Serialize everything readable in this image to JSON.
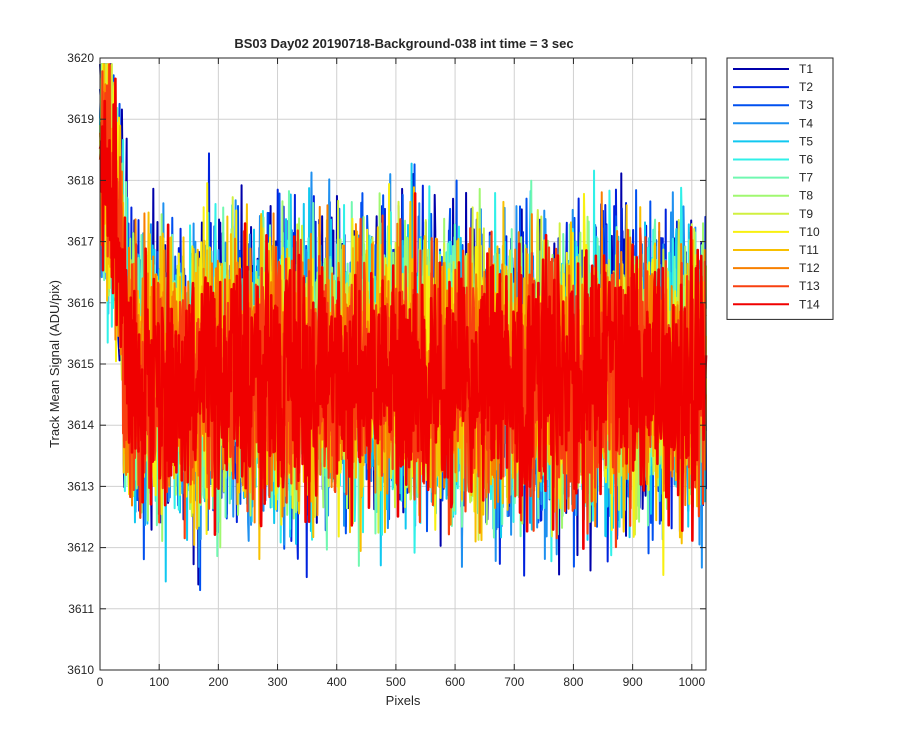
{
  "chart_data": {
    "type": "line",
    "title": "BS03 Day02 20190718-Background-038 int time = 3 sec",
    "xlabel": "Pixels",
    "ylabel": "Track Mean Signal (ADU/pix)",
    "xlim": [
      0,
      1024
    ],
    "ylim": [
      3610,
      3620
    ],
    "xticks": [
      0,
      100,
      200,
      300,
      400,
      500,
      600,
      700,
      800,
      900,
      1000
    ],
    "yticks": [
      3610,
      3611,
      3612,
      3613,
      3614,
      3615,
      3616,
      3617,
      3618,
      3619,
      3620
    ],
    "grid": true,
    "legend_position": "outside-top-right",
    "n_points_per_series": 1024,
    "series": [
      {
        "name": "T1",
        "color": "#0000AA",
        "start": 3619.8,
        "mean": 3615.0,
        "noise": 1.25,
        "stroke": 2.0
      },
      {
        "name": "T2",
        "color": "#0022DD",
        "start": 3619.5,
        "mean": 3614.95,
        "noise": 1.22,
        "stroke": 2.0
      },
      {
        "name": "T3",
        "color": "#0050F0",
        "start": 3619.3,
        "mean": 3614.9,
        "noise": 1.2,
        "stroke": 2.0
      },
      {
        "name": "T4",
        "color": "#1E90F0",
        "start": 3619.1,
        "mean": 3614.85,
        "noise": 1.18,
        "stroke": 2.0
      },
      {
        "name": "T5",
        "color": "#10C8F0",
        "start": 3619.0,
        "mean": 3614.85,
        "noise": 1.15,
        "stroke": 2.0
      },
      {
        "name": "T6",
        "color": "#30F0E8",
        "start": 3618.9,
        "mean": 3614.85,
        "noise": 1.12,
        "stroke": 2.0
      },
      {
        "name": "T7",
        "color": "#70F8B0",
        "start": 3618.8,
        "mean": 3614.85,
        "noise": 1.1,
        "stroke": 2.0
      },
      {
        "name": "T8",
        "color": "#A0F870",
        "start": 3618.7,
        "mean": 3614.85,
        "noise": 1.08,
        "stroke": 2.0
      },
      {
        "name": "T9",
        "color": "#D0F040",
        "start": 3618.6,
        "mean": 3614.85,
        "noise": 1.06,
        "stroke": 2.0
      },
      {
        "name": "T10",
        "color": "#F8F010",
        "start": 3618.6,
        "mean": 3614.85,
        "noise": 1.05,
        "stroke": 2.0
      },
      {
        "name": "T11",
        "color": "#F8C000",
        "start": 3618.7,
        "mean": 3614.85,
        "noise": 1.05,
        "stroke": 2.0
      },
      {
        "name": "T12",
        "color": "#F88000",
        "start": 3618.8,
        "mean": 3614.8,
        "noise": 1.05,
        "stroke": 2.0
      },
      {
        "name": "T13",
        "color": "#F84010",
        "start": 3618.6,
        "mean": 3614.8,
        "noise": 1.0,
        "stroke": 2.2
      },
      {
        "name": "T14",
        "color": "#F00000",
        "start": 3618.5,
        "mean": 3614.75,
        "noise": 1.0,
        "stroke": 2.6
      }
    ]
  }
}
